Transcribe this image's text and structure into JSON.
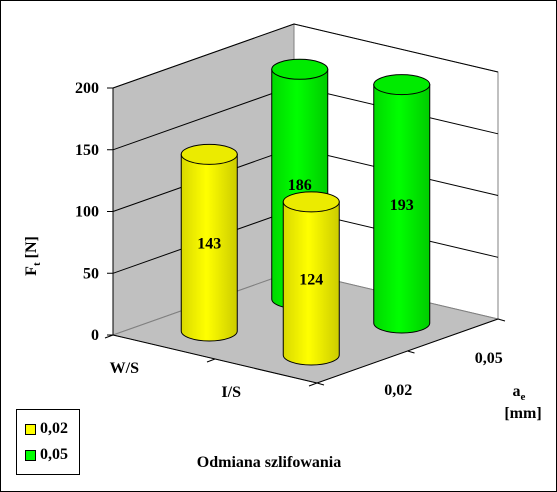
{
  "chart_data": {
    "type": "bar",
    "subtype": "3d-cylinder",
    "categories": [
      "W/S",
      "I/S"
    ],
    "series": [
      {
        "name": "0,02",
        "values": [
          143,
          124
        ],
        "color": "#ffff00"
      },
      {
        "name": "0,05",
        "values": [
          186,
          193
        ],
        "color": "#00ff00"
      }
    ],
    "ylabel_main": "F",
    "ylabel_sub": "t",
    "ylabel_unit": " [N]",
    "xlabel": "Odmiana szlifowania",
    "zlabel_main": "a",
    "zlabel_sub": "e",
    "zlabel_unit": "[mm]",
    "yticks": [
      0,
      50,
      100,
      150,
      200
    ],
    "ylim": [
      0,
      200
    ],
    "grid": true,
    "legend_position": "bottom-left"
  }
}
